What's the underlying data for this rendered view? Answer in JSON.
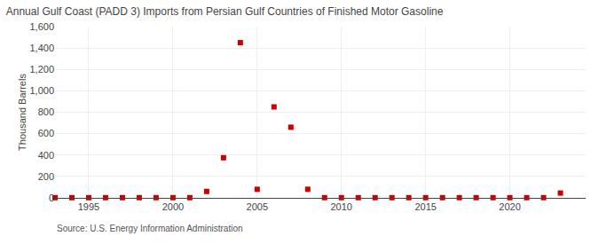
{
  "chart_data": {
    "type": "scatter",
    "title": "Annual Gulf Coast (PADD 3) Imports from Persian Gulf Countries of Finished Motor Gasoline",
    "ylabel": "Thousand Barrels",
    "annotations": [
      "Source: U.S. Energy Information Administration"
    ],
    "x": [
      1993,
      1994,
      1995,
      1996,
      1997,
      1998,
      1999,
      2000,
      2001,
      2002,
      2003,
      2004,
      2005,
      2006,
      2007,
      2008,
      2009,
      2010,
      2011,
      2012,
      2013,
      2014,
      2015,
      2016,
      2017,
      2018,
      2019,
      2020,
      2021,
      2022,
      2023
    ],
    "values": [
      2,
      2,
      2,
      2,
      2,
      2,
      2,
      2,
      2,
      60,
      375,
      1450,
      80,
      850,
      660,
      80,
      2,
      2,
      2,
      2,
      2,
      2,
      2,
      2,
      2,
      2,
      2,
      2,
      2,
      2,
      45
    ],
    "color": "#cc0000",
    "marker": "square",
    "xlim": [
      1993.0,
      2024.5
    ],
    "xticks": [
      1995,
      2000,
      2005,
      2010,
      2015,
      2020
    ],
    "ylim": [
      0,
      1600
    ],
    "yticks": [
      0,
      200,
      400,
      600,
      {
        "value": 800,
        "label": "800"
      },
      {
        "value": 1000,
        "label": "1,000"
      },
      {
        "value": 1200,
        "label": "1,200"
      },
      {
        "value": 1400,
        "label": "1,400"
      },
      {
        "value": 1600,
        "label": "1,600"
      }
    ],
    "grid": true
  }
}
